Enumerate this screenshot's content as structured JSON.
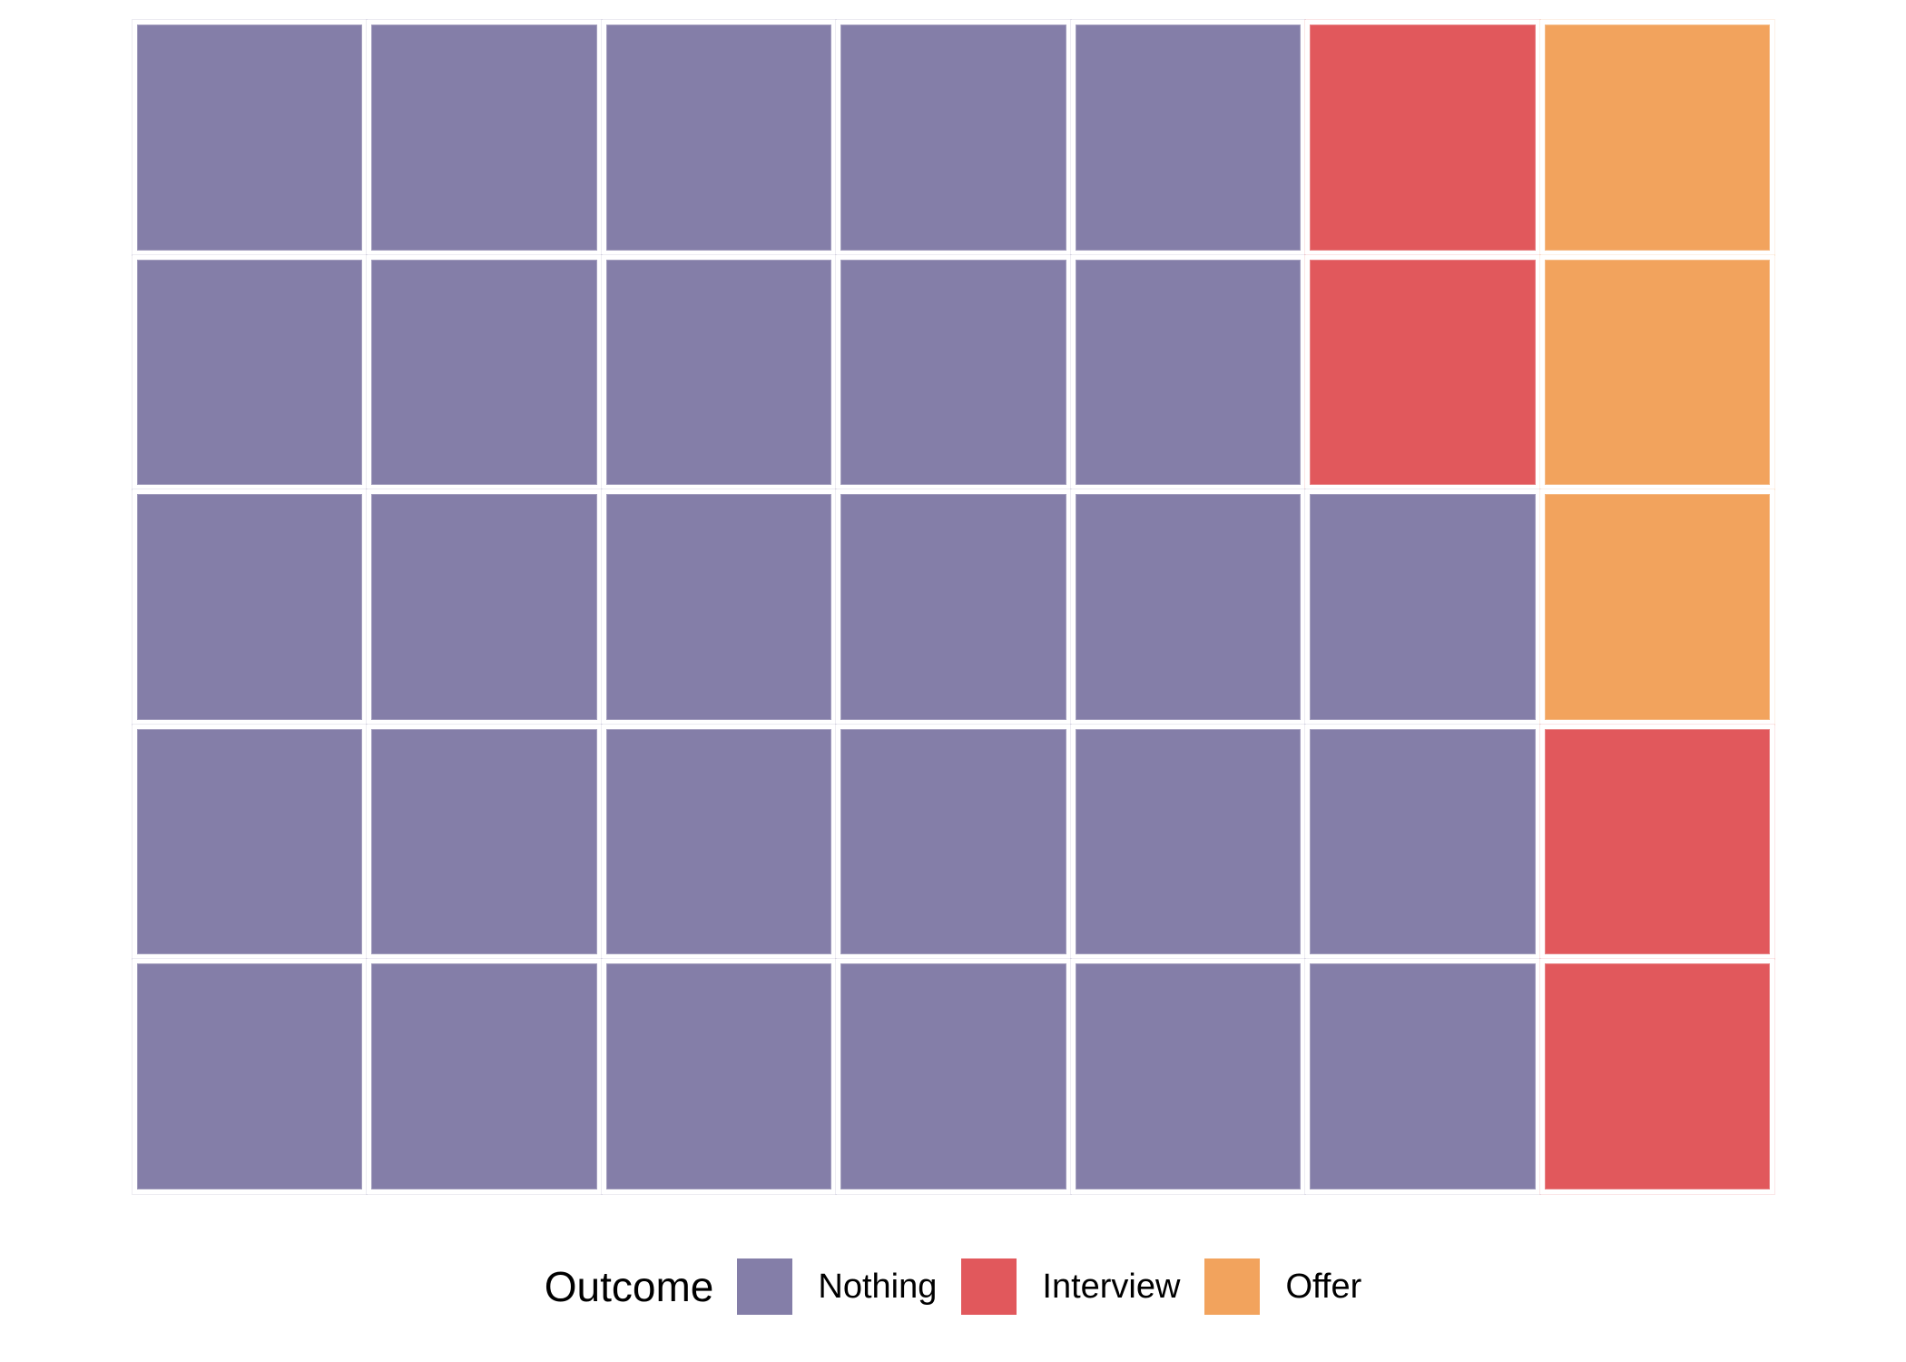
{
  "chart_data": {
    "type": "waffle",
    "title": "",
    "rows": 5,
    "cols": 7,
    "total_cells": 35,
    "background_color": "#FFFFFF",
    "gap_color": "#FFFFFF",
    "legend": {
      "title": "Outcome",
      "position": "bottom",
      "entries": [
        {
          "key": "nothing",
          "label": "Nothing",
          "color": "#847EA8",
          "count": 28
        },
        {
          "key": "interview",
          "label": "Interview",
          "color": "#E1585C",
          "count": 4
        },
        {
          "key": "offer",
          "label": "Offer",
          "color": "#F2A35D",
          "count": 3
        }
      ]
    },
    "grid_rows": [
      [
        "nothing",
        "nothing",
        "nothing",
        "nothing",
        "nothing",
        "interview",
        "offer"
      ],
      [
        "nothing",
        "nothing",
        "nothing",
        "nothing",
        "nothing",
        "interview",
        "offer"
      ],
      [
        "nothing",
        "nothing",
        "nothing",
        "nothing",
        "nothing",
        "nothing",
        "offer"
      ],
      [
        "nothing",
        "nothing",
        "nothing",
        "nothing",
        "nothing",
        "nothing",
        "interview"
      ],
      [
        "nothing",
        "nothing",
        "nothing",
        "nothing",
        "nothing",
        "nothing",
        "interview"
      ]
    ]
  }
}
